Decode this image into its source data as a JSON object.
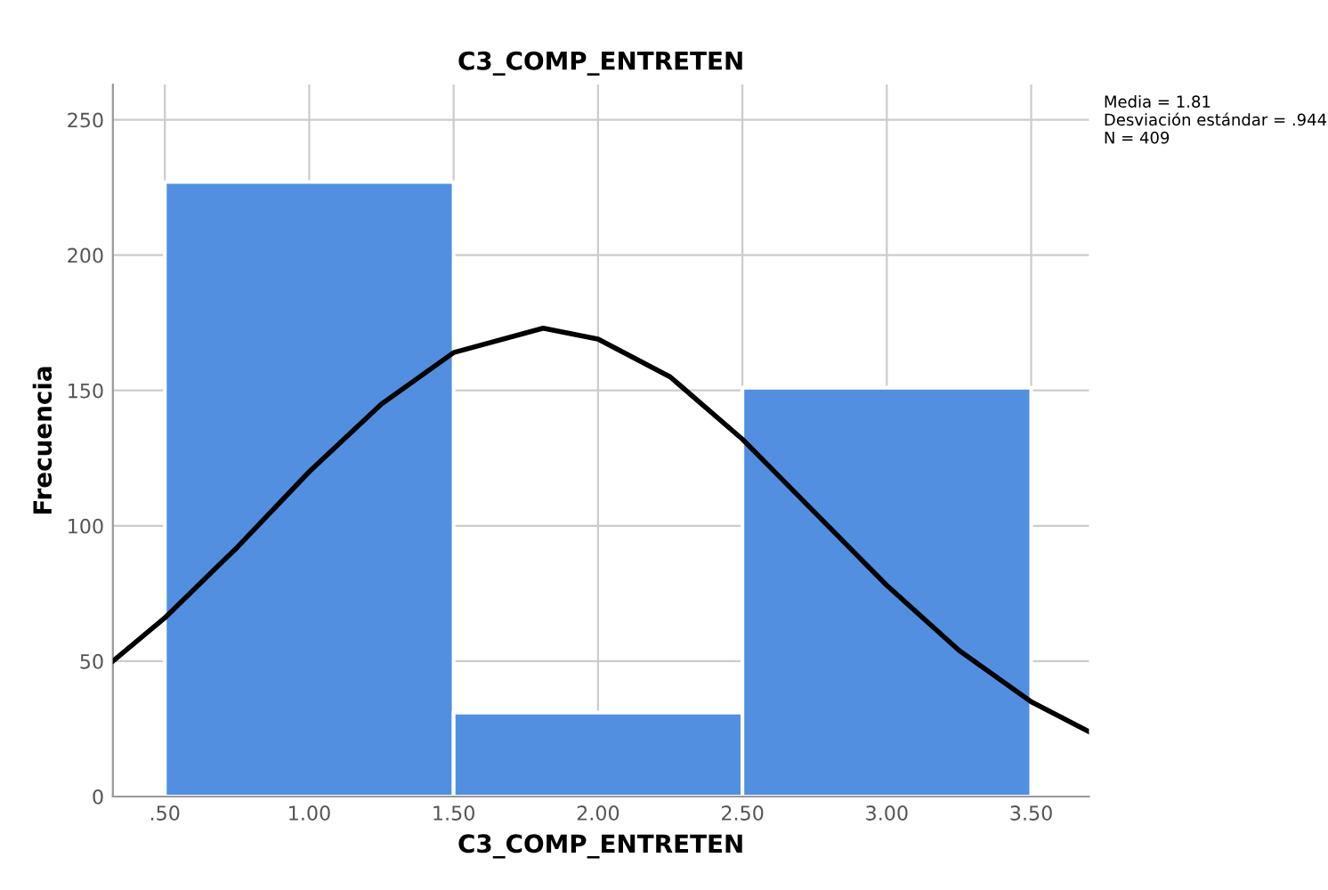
{
  "chart_data": {
    "type": "histogram",
    "title": "C3_COMP_ENTRETEN",
    "xlabel": "C3_COMP_ENTRETEN",
    "ylabel": "Frecuencia",
    "series": [
      {
        "bins": [
          0.5,
          1.5,
          2.5,
          3.5
        ],
        "values": [
          227,
          31,
          151
        ],
        "color": "#528fe0"
      },
      {
        "type": "line",
        "color": "#000000",
        "x": [
          0.32,
          0.5,
          0.75,
          1.0,
          1.25,
          1.5,
          1.81,
          2.0,
          2.25,
          2.5,
          2.75,
          3.0,
          3.25,
          3.5,
          3.7
        ],
        "values": [
          50,
          66,
          92,
          120,
          145,
          164,
          173,
          169,
          155,
          132,
          105,
          78,
          54,
          35,
          24
        ]
      }
    ],
    "xlim": [
      0.32,
      3.7
    ],
    "ylim": [
      0,
      263
    ],
    "xticks": [
      {
        "value": 0.5,
        "label": ".50"
      },
      {
        "value": 1.0,
        "label": "1.00"
      },
      {
        "value": 1.5,
        "label": "1.50"
      },
      {
        "value": 2.0,
        "label": "2.00"
      },
      {
        "value": 2.5,
        "label": "2.50"
      },
      {
        "value": 3.0,
        "label": "3.00"
      },
      {
        "value": 3.5,
        "label": "3.50"
      }
    ],
    "yticks": [
      0,
      50,
      100,
      150,
      200,
      250
    ],
    "grid": true,
    "annotations": [
      "Media = 1.81",
      "Desviación estándar = .944",
      "N = 409"
    ]
  }
}
